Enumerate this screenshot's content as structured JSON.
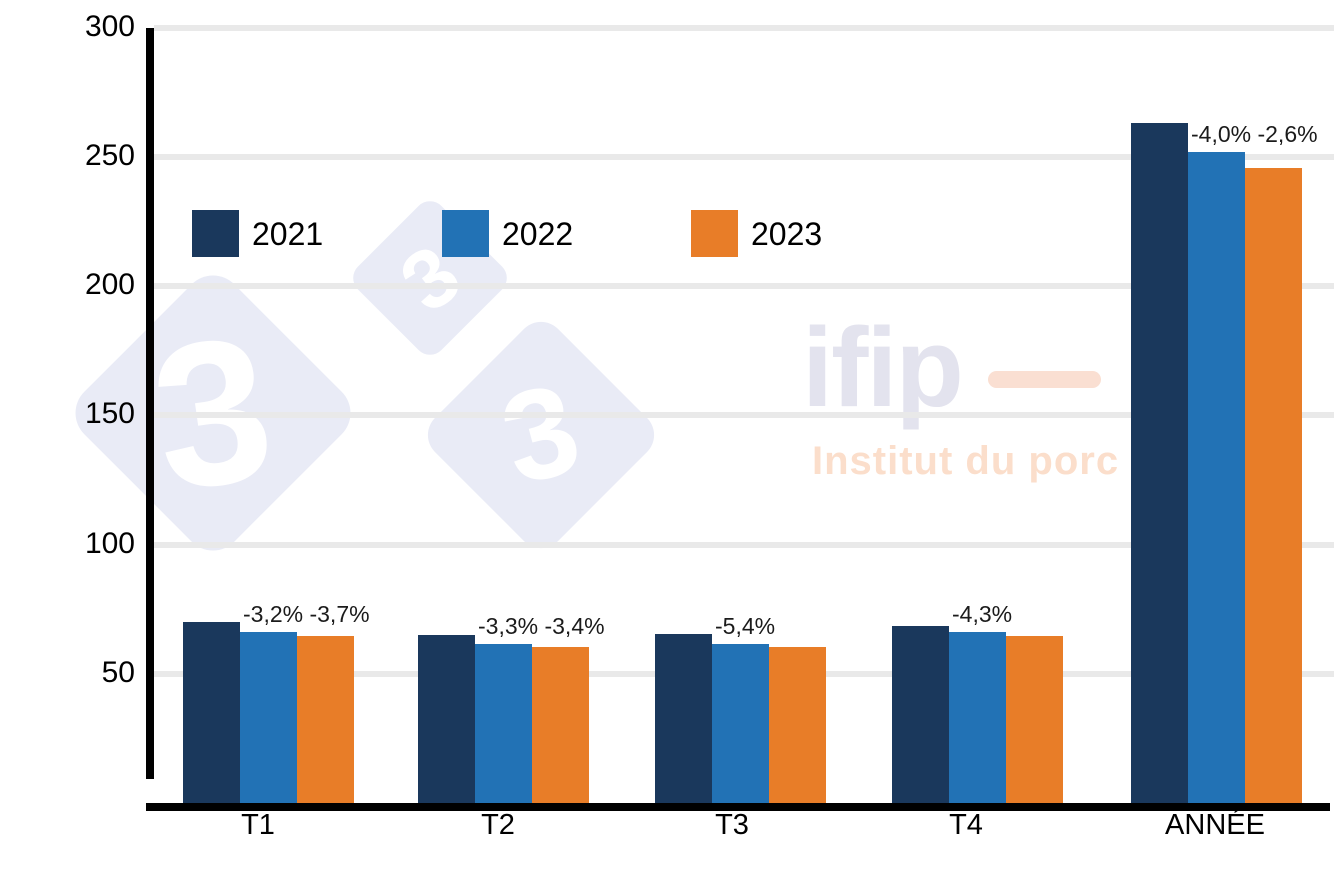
{
  "chart_data": {
    "type": "bar",
    "title": "",
    "xlabel": "",
    "ylabel": "",
    "categories": [
      "T1",
      "T2",
      "T3",
      "T4",
      "ANNÉE"
    ],
    "series": [
      {
        "name": "2021",
        "color": "#1a385c",
        "values": [
          70,
          65,
          65.5,
          68.5,
          263
        ]
      },
      {
        "name": "2022",
        "color": "#2272b5",
        "values": [
          66,
          61.5,
          61.5,
          66,
          252
        ]
      },
      {
        "name": "2023",
        "color": "#e87d28",
        "values": [
          64.5,
          60.5,
          60.5,
          64.5,
          245.5
        ]
      }
    ],
    "annotations": [
      [
        "-3,2%",
        "-3,7%"
      ],
      [
        "-3,3%",
        "-3,4%"
      ],
      [
        "-5,4%"
      ],
      [
        "-4,3%"
      ],
      [
        "-4,0%",
        "-2,6%"
      ]
    ],
    "yticks": [
      50,
      100,
      150,
      200,
      250,
      300
    ],
    "ylim": [
      0,
      300
    ],
    "grid": "horizontal-only",
    "legend_position": "inside-top-left"
  },
  "legend": {
    "items": [
      {
        "label": "2021",
        "color": "#1a385c"
      },
      {
        "label": "2022",
        "color": "#2272b5"
      },
      {
        "label": "2023",
        "color": "#e87d28"
      }
    ]
  },
  "watermarks": {
    "diamonds": [
      {
        "glyph": "3"
      },
      {
        "glyph": "3"
      },
      {
        "glyph": "3"
      }
    ],
    "ifip": {
      "brand": "ifip",
      "subtitle": "Institut du porc"
    }
  },
  "colors": {
    "background": "#ffffff",
    "axis": "#000000",
    "gridline": "#e9e9e9",
    "annotation_text": "#1b1b1b",
    "watermark_diamond": "#e9ebf6",
    "watermark_three": "#ffffff",
    "watermark_brand": "#e3e3ee",
    "watermark_subtitle": "#fbdecb",
    "watermark_dash": "#fadfd2"
  }
}
